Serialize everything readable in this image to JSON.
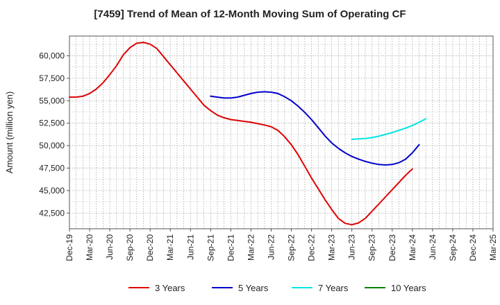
{
  "chart_data": {
    "type": "line",
    "title": "[7459]  Trend of Mean of 12-Month Moving Sum of Operating CF",
    "xlabel": "",
    "ylabel": "Amount (million yen)",
    "ylim": [
      40750,
      62200
    ],
    "yticks": [
      42500,
      45000,
      47500,
      50000,
      52500,
      55000,
      57500,
      60000
    ],
    "ytick_labels": [
      "42,500",
      "45,000",
      "47,500",
      "50,000",
      "52,500",
      "55,000",
      "57,500",
      "60,000"
    ],
    "x_categories": [
      "Dec-19",
      "Mar-20",
      "Jun-20",
      "Sep-20",
      "Dec-20",
      "Mar-21",
      "Jun-21",
      "Sep-21",
      "Dec-21",
      "Mar-22",
      "Jun-22",
      "Sep-22",
      "Dec-22",
      "Mar-23",
      "Jun-23",
      "Sep-23",
      "Dec-23",
      "Mar-24",
      "Jun-24",
      "Sep-24",
      "Dec-24",
      "Mar-25"
    ],
    "grid": true,
    "legend_position": "bottom",
    "series": [
      {
        "name": "3 Years",
        "color": "#e00000",
        "start_index": 0,
        "values": [
          55400,
          55400,
          55500,
          55800,
          56300,
          57000,
          57900,
          58900,
          60100,
          60900,
          61400,
          61500,
          61300,
          60800,
          59900,
          59000,
          58100,
          57200,
          56300,
          55400,
          54500,
          53900,
          53400,
          53100,
          52900,
          52800,
          52700,
          52600,
          52450,
          52300,
          52100,
          51700,
          51000,
          50100,
          49000,
          47700,
          46400,
          45200,
          44000,
          42900,
          41900,
          41350,
          41200,
          41400,
          41900,
          42700,
          43500,
          44300,
          45100,
          45900,
          46700,
          47400
        ]
      },
      {
        "name": "5 Years",
        "color": "#0000cc",
        "start_index": 21,
        "values": [
          55500,
          55400,
          55300,
          55300,
          55400,
          55600,
          55800,
          55950,
          56000,
          55950,
          55800,
          55450,
          55000,
          54400,
          53700,
          52900,
          52000,
          51100,
          50300,
          49700,
          49200,
          48800,
          48500,
          48250,
          48050,
          47900,
          47850,
          47900,
          48100,
          48500,
          49200,
          50100
        ]
      },
      {
        "name": "7 Years",
        "color": "#00e5e5",
        "start_index": 42,
        "values": [
          50700,
          50750,
          50800,
          50900,
          51050,
          51250,
          51450,
          51700,
          51950,
          52250,
          52600,
          53000
        ]
      },
      {
        "name": "10 Years",
        "color": "#008000",
        "start_index": 0,
        "values": []
      }
    ]
  }
}
